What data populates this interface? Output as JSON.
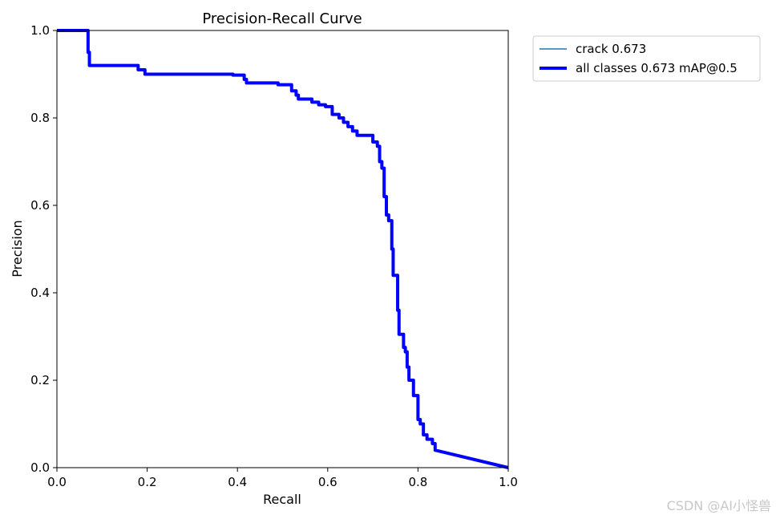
{
  "chart_data": {
    "type": "line",
    "title": "Precision-Recall Curve",
    "xlabel": "Recall",
    "ylabel": "Precision",
    "xlim": [
      0.0,
      1.0
    ],
    "ylim": [
      0.0,
      1.0
    ],
    "xticks": [
      "0.0",
      "0.2",
      "0.4",
      "0.6",
      "0.8",
      "1.0"
    ],
    "yticks": [
      "0.0",
      "0.2",
      "0.4",
      "0.6",
      "0.8",
      "1.0"
    ],
    "grid": false,
    "legend_position": "outside-top-right",
    "series": [
      {
        "name": "crack 0.673",
        "color": "#1f77b4",
        "points": [
          [
            0.0,
            1.0
          ],
          [
            0.069,
            1.0
          ],
          [
            0.069,
            0.95
          ],
          [
            0.072,
            0.95
          ],
          [
            0.072,
            0.92
          ],
          [
            0.18,
            0.92
          ],
          [
            0.18,
            0.91
          ],
          [
            0.195,
            0.91
          ],
          [
            0.195,
            0.9
          ],
          [
            0.39,
            0.9
          ],
          [
            0.39,
            0.898
          ],
          [
            0.415,
            0.898
          ],
          [
            0.415,
            0.888
          ],
          [
            0.42,
            0.888
          ],
          [
            0.42,
            0.88
          ],
          [
            0.49,
            0.88
          ],
          [
            0.49,
            0.876
          ],
          [
            0.52,
            0.876
          ],
          [
            0.52,
            0.862
          ],
          [
            0.53,
            0.862
          ],
          [
            0.53,
            0.852
          ],
          [
            0.535,
            0.852
          ],
          [
            0.535,
            0.843
          ],
          [
            0.565,
            0.843
          ],
          [
            0.565,
            0.836
          ],
          [
            0.58,
            0.836
          ],
          [
            0.58,
            0.83
          ],
          [
            0.595,
            0.83
          ],
          [
            0.595,
            0.826
          ],
          [
            0.61,
            0.826
          ],
          [
            0.61,
            0.808
          ],
          [
            0.625,
            0.808
          ],
          [
            0.625,
            0.8
          ],
          [
            0.635,
            0.8
          ],
          [
            0.635,
            0.79
          ],
          [
            0.645,
            0.79
          ],
          [
            0.645,
            0.78
          ],
          [
            0.655,
            0.78
          ],
          [
            0.655,
            0.77
          ],
          [
            0.665,
            0.77
          ],
          [
            0.665,
            0.76
          ],
          [
            0.7,
            0.76
          ],
          [
            0.7,
            0.745
          ],
          [
            0.71,
            0.745
          ],
          [
            0.71,
            0.735
          ],
          [
            0.715,
            0.735
          ],
          [
            0.715,
            0.7
          ],
          [
            0.72,
            0.7
          ],
          [
            0.72,
            0.685
          ],
          [
            0.725,
            0.685
          ],
          [
            0.725,
            0.62
          ],
          [
            0.73,
            0.62
          ],
          [
            0.73,
            0.578
          ],
          [
            0.735,
            0.578
          ],
          [
            0.735,
            0.565
          ],
          [
            0.742,
            0.565
          ],
          [
            0.742,
            0.5
          ],
          [
            0.745,
            0.5
          ],
          [
            0.745,
            0.44
          ],
          [
            0.755,
            0.44
          ],
          [
            0.755,
            0.36
          ],
          [
            0.758,
            0.36
          ],
          [
            0.758,
            0.305
          ],
          [
            0.768,
            0.305
          ],
          [
            0.768,
            0.275
          ],
          [
            0.772,
            0.275
          ],
          [
            0.772,
            0.265
          ],
          [
            0.776,
            0.265
          ],
          [
            0.776,
            0.23
          ],
          [
            0.78,
            0.23
          ],
          [
            0.78,
            0.2
          ],
          [
            0.79,
            0.2
          ],
          [
            0.79,
            0.165
          ],
          [
            0.8,
            0.165
          ],
          [
            0.8,
            0.11
          ],
          [
            0.805,
            0.11
          ],
          [
            0.805,
            0.1
          ],
          [
            0.812,
            0.1
          ],
          [
            0.812,
            0.075
          ],
          [
            0.82,
            0.075
          ],
          [
            0.82,
            0.065
          ],
          [
            0.832,
            0.065
          ],
          [
            0.832,
            0.055
          ],
          [
            0.838,
            0.055
          ],
          [
            0.838,
            0.04
          ],
          [
            1.0,
            0.0
          ]
        ]
      },
      {
        "name": "all classes 0.673 mAP@0.5",
        "color": "#0000ff",
        "same_as": 0
      }
    ]
  },
  "watermark": "CSDN @AI小怪兽"
}
